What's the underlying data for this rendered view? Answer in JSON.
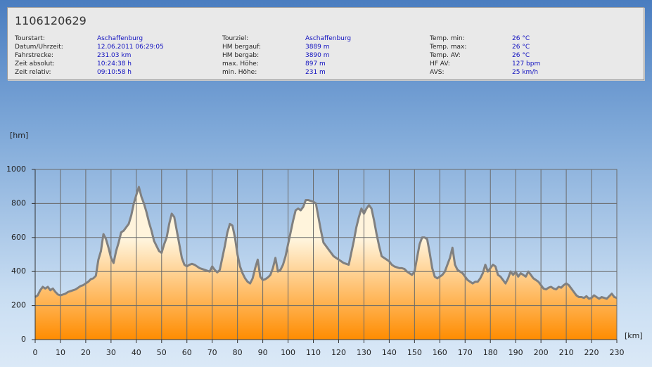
{
  "header": {
    "title": "1106120629",
    "columns": [
      [
        {
          "label": "Tourstart:",
          "value": "Aschaffenburg"
        },
        {
          "label": "Datum/Uhrzeit:",
          "value": "12.06.2011 06:29:05"
        },
        {
          "label": "Fahrstrecke:",
          "value": "231.03 km"
        },
        {
          "label": "Zeit absolut:",
          "value": "10:24:38 h"
        },
        {
          "label": "Zeit relativ:",
          "value": "09:10:58 h"
        }
      ],
      [
        {
          "label": "Tourziel:",
          "value": "Aschaffenburg"
        },
        {
          "label": "HM bergauf:",
          "value": "3889 m"
        },
        {
          "label": "HM bergab:",
          "value": "3890 m"
        },
        {
          "label": "max. Höhe:",
          "value": "897 m"
        },
        {
          "label": "min. Höhe:",
          "value": "231 m"
        }
      ],
      [
        {
          "label": "Temp. min:",
          "value": "26 °C"
        },
        {
          "label": "Temp. max:",
          "value": "26 °C"
        },
        {
          "label": "Temp. AV:",
          "value": "26 °C"
        },
        {
          "label": "HF AV:",
          "value": "127 bpm"
        },
        {
          "label": "AVS:",
          "value": "25 km/h"
        }
      ]
    ]
  },
  "chart_data": {
    "type": "area",
    "y_label": "[hm]",
    "x_label": "[km]",
    "line_color": "#808080",
    "fill_top": "#fff4dc",
    "fill_bottom": "#ff8c00",
    "grid": true,
    "xlim": [
      0,
      230
    ],
    "xticks": [
      0,
      10,
      20,
      30,
      40,
      50,
      60,
      70,
      80,
      90,
      100,
      110,
      120,
      130,
      140,
      150,
      160,
      170,
      180,
      190,
      200,
      210,
      220,
      230
    ],
    "ylim": [
      0,
      1000
    ],
    "yticks": [
      0,
      200,
      400,
      600,
      800,
      1000
    ],
    "x": [
      0,
      1,
      2,
      3,
      4,
      5,
      6,
      7,
      8,
      9,
      10,
      11,
      12,
      13,
      14,
      15,
      16,
      17,
      18,
      19,
      20,
      21,
      22,
      23,
      24,
      25,
      26,
      27,
      28,
      29,
      30,
      31,
      32,
      33,
      34,
      35,
      36,
      37,
      38,
      39,
      40,
      41,
      42,
      43,
      44,
      45,
      46,
      47,
      48,
      49,
      50,
      51,
      52,
      53,
      54,
      55,
      56,
      57,
      58,
      59,
      60,
      61,
      62,
      63,
      64,
      65,
      66,
      67,
      68,
      69,
      70,
      71,
      72,
      73,
      74,
      75,
      76,
      77,
      78,
      79,
      80,
      81,
      82,
      83,
      84,
      85,
      86,
      87,
      88,
      89,
      90,
      91,
      92,
      93,
      94,
      95,
      96,
      97,
      98,
      99,
      100,
      101,
      102,
      103,
      104,
      105,
      106,
      107,
      108,
      109,
      110,
      111,
      112,
      113,
      114,
      115,
      116,
      117,
      118,
      119,
      120,
      121,
      122,
      123,
      124,
      125,
      126,
      127,
      128,
      129,
      130,
      131,
      132,
      133,
      134,
      135,
      136,
      137,
      138,
      139,
      140,
      141,
      142,
      143,
      144,
      145,
      146,
      147,
      148,
      149,
      150,
      151,
      152,
      153,
      154,
      155,
      156,
      157,
      158,
      159,
      160,
      161,
      162,
      163,
      164,
      165,
      166,
      167,
      168,
      169,
      170,
      171,
      172,
      173,
      174,
      175,
      176,
      177,
      178,
      179,
      180,
      181,
      182,
      183,
      184,
      185,
      186,
      187,
      188,
      189,
      190,
      191,
      192,
      193,
      194,
      195,
      196,
      197,
      198,
      199,
      200,
      201,
      202,
      203,
      204,
      205,
      206,
      207,
      208,
      209,
      210,
      211,
      212,
      213,
      214,
      215,
      216,
      217,
      218,
      219,
      220,
      221,
      222,
      223,
      224,
      225,
      226,
      227,
      228,
      229,
      230
    ],
    "values": [
      250,
      260,
      290,
      310,
      300,
      310,
      290,
      300,
      280,
      265,
      260,
      265,
      270,
      280,
      285,
      290,
      295,
      305,
      315,
      320,
      330,
      340,
      355,
      360,
      375,
      470,
      520,
      620,
      590,
      540,
      480,
      450,
      520,
      570,
      630,
      640,
      660,
      680,
      730,
      800,
      850,
      897,
      840,
      800,
      750,
      690,
      640,
      580,
      550,
      520,
      510,
      560,
      600,
      680,
      740,
      720,
      640,
      560,
      480,
      440,
      430,
      440,
      445,
      440,
      430,
      420,
      415,
      410,
      405,
      400,
      430,
      410,
      395,
      410,
      480,
      550,
      630,
      680,
      670,
      600,
      500,
      430,
      390,
      360,
      340,
      330,
      360,
      420,
      470,
      370,
      350,
      355,
      365,
      380,
      420,
      480,
      400,
      410,
      440,
      490,
      560,
      630,
      700,
      760,
      770,
      760,
      780,
      820,
      820,
      815,
      810,
      800,
      720,
      640,
      570,
      550,
      530,
      510,
      490,
      480,
      470,
      460,
      450,
      445,
      440,
      510,
      580,
      660,
      720,
      770,
      740,
      770,
      790,
      770,
      700,
      620,
      550,
      490,
      480,
      470,
      460,
      440,
      430,
      425,
      420,
      420,
      415,
      400,
      390,
      380,
      400,
      480,
      560,
      600,
      600,
      590,
      510,
      420,
      370,
      360,
      370,
      380,
      400,
      440,
      480,
      540,
      440,
      410,
      400,
      390,
      370,
      350,
      340,
      330,
      340,
      340,
      360,
      390,
      440,
      400,
      420,
      440,
      430,
      380,
      370,
      350,
      330,
      360,
      400,
      380,
      400,
      370,
      390,
      380,
      370,
      400,
      380,
      360,
      350,
      340,
      320,
      300,
      295,
      305,
      310,
      300,
      295,
      310,
      305,
      320,
      330,
      320,
      300,
      280,
      260,
      250,
      250,
      245,
      255,
      240,
      245,
      260,
      250,
      240,
      250,
      245,
      240,
      255,
      270,
      250,
      245
    ]
  }
}
